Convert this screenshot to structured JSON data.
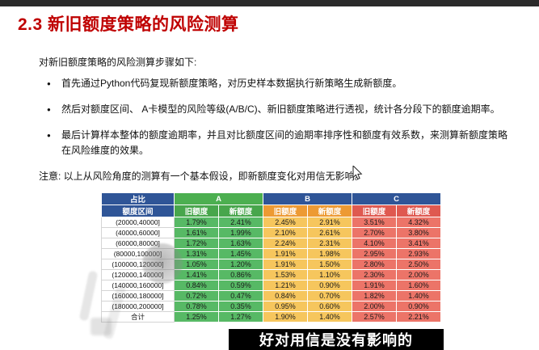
{
  "title": "2.3 新旧额度策略的风险测算",
  "intro": "对新旧额度策略的风险测算步骤如下:",
  "bullets": [
    "首先通过Python代码复现新额度策略，对历史样本数据执行新策略生成新额度。",
    "然后对额度区间、 A卡模型的风险等级(A/B/C)、新旧额度策略进行透视，统计各分段下的额度逾期率。",
    "最后计算样本整体的额度逾期率，并且对比额度区间的逾期率排序性和额度有效系数，来测算新额度策略在风险维度的效果。"
  ],
  "note": "注意: 以上从风险角度的测算有一个基本假设，即新额度变化对用信无影响。",
  "table": {
    "corner_top": "占比",
    "corner_bottom": "额度区间",
    "groups": [
      "A",
      "B",
      "C"
    ],
    "sub_headers": [
      "旧额度",
      "新额度"
    ],
    "rows": [
      {
        "range": "(20000,40000]",
        "values": [
          "1.79%",
          "2.41%",
          "2.45%",
          "2.91%",
          "3.51%",
          "4.32%"
        ]
      },
      {
        "range": "(40000,60000]",
        "values": [
          "1.61%",
          "1.99%",
          "2.10%",
          "2.61%",
          "2.70%",
          "3.80%"
        ]
      },
      {
        "range": "(60000,80000]",
        "values": [
          "1.72%",
          "1.63%",
          "2.24%",
          "2.31%",
          "4.10%",
          "3.41%"
        ]
      },
      {
        "range": "(80000,100000]",
        "values": [
          "1.31%",
          "1.45%",
          "1.91%",
          "1.98%",
          "2.95%",
          "2.93%"
        ]
      },
      {
        "range": "(100000,120000]",
        "values": [
          "1.05%",
          "1.20%",
          "1.91%",
          "1.50%",
          "2.80%",
          "2.50%"
        ]
      },
      {
        "range": "(120000,140000]",
        "values": [
          "1.41%",
          "0.86%",
          "1.53%",
          "1.10%",
          "2.30%",
          "2.00%"
        ]
      },
      {
        "range": "(140000,160000]",
        "values": [
          "0.84%",
          "0.59%",
          "1.21%",
          "0.90%",
          "1.91%",
          "1.60%"
        ]
      },
      {
        "range": "(160000,180000]",
        "values": [
          "0.72%",
          "0.47%",
          "0.84%",
          "0.70%",
          "1.82%",
          "1.40%"
        ]
      },
      {
        "range": "(180000,200000]",
        "values": [
          "0.78%",
          "0.35%",
          "0.95%",
          "0.60%",
          "2.00%",
          "0.90%"
        ]
      }
    ],
    "total": {
      "label": "合计",
      "values": [
        "1.25%",
        "1.27%",
        "1.90%",
        "1.40%",
        "2.57%",
        "2.21%"
      ]
    }
  },
  "subtitle_overlay": "好对用信是没有影响的",
  "colors": {
    "title_red": "#BF0000",
    "header_blue": "#2F5597",
    "group_a_green": "#4CAF50",
    "sub_green": "#48A64C",
    "sub_orange": "#ED9A33",
    "sub_red": "#DF5950",
    "data_green": "#57B965",
    "data_yellow": "#F6C65D",
    "data_salmon": "#EC7468"
  }
}
